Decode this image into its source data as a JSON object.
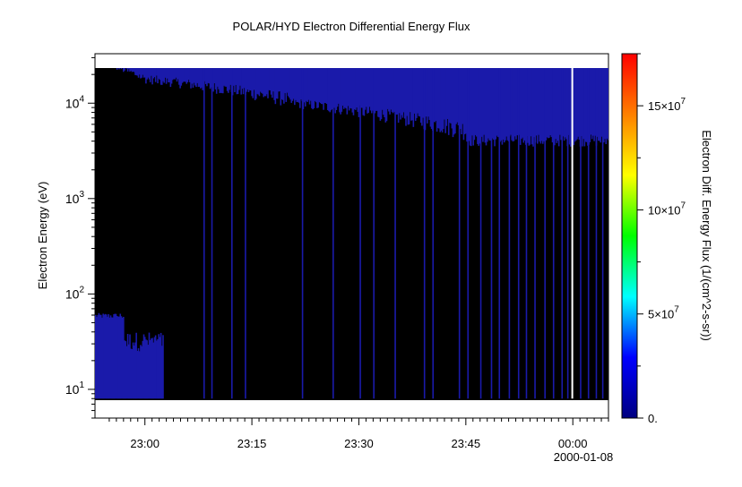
{
  "chart_data": {
    "type": "heatmap",
    "title": "POLAR/HYD  Electron Differential Energy Flux",
    "ylabel": "Electron Energy (eV)",
    "yscale": "log",
    "ylim": [
      5,
      33000
    ],
    "y_ticks": [
      {
        "value": 10,
        "base": "10",
        "exp": "1"
      },
      {
        "value": 100,
        "base": "10",
        "exp": "2"
      },
      {
        "value": 1000,
        "base": "10",
        "exp": "3"
      },
      {
        "value": 10000,
        "base": "10",
        "exp": "4"
      }
    ],
    "x_ticks": [
      "23:00",
      "23:15",
      "23:30",
      "23:45",
      "00:00"
    ],
    "x_tick_minutes": [
      0,
      15,
      30,
      45,
      60
    ],
    "xlim_minutes": [
      -7,
      65
    ],
    "date_label": "2000-01-08",
    "data_energy_range_eV": [
      8,
      28000
    ],
    "colorbar": {
      "label": "Electron Diff. Energy Flux (1/(cm^2-s-sr))",
      "range": [
        0,
        175000000
      ],
      "ticks": [
        {
          "value": 0,
          "label": "0."
        },
        {
          "value": 50000000,
          "label": "5×10",
          "exp": "7"
        },
        {
          "value": 100000000,
          "label": "10×10",
          "exp": "7"
        },
        {
          "value": 150000000,
          "label": "15×10",
          "exp": "7"
        }
      ],
      "colormap": [
        "#000080",
        "#0000ff",
        "#00ffff",
        "#00ff00",
        "#ffff00",
        "#ff8000",
        "#ff0000"
      ]
    },
    "background_color": "#000000",
    "signal_color": "#1a1aaa",
    "gap_minutes": [
      59.8
    ]
  }
}
